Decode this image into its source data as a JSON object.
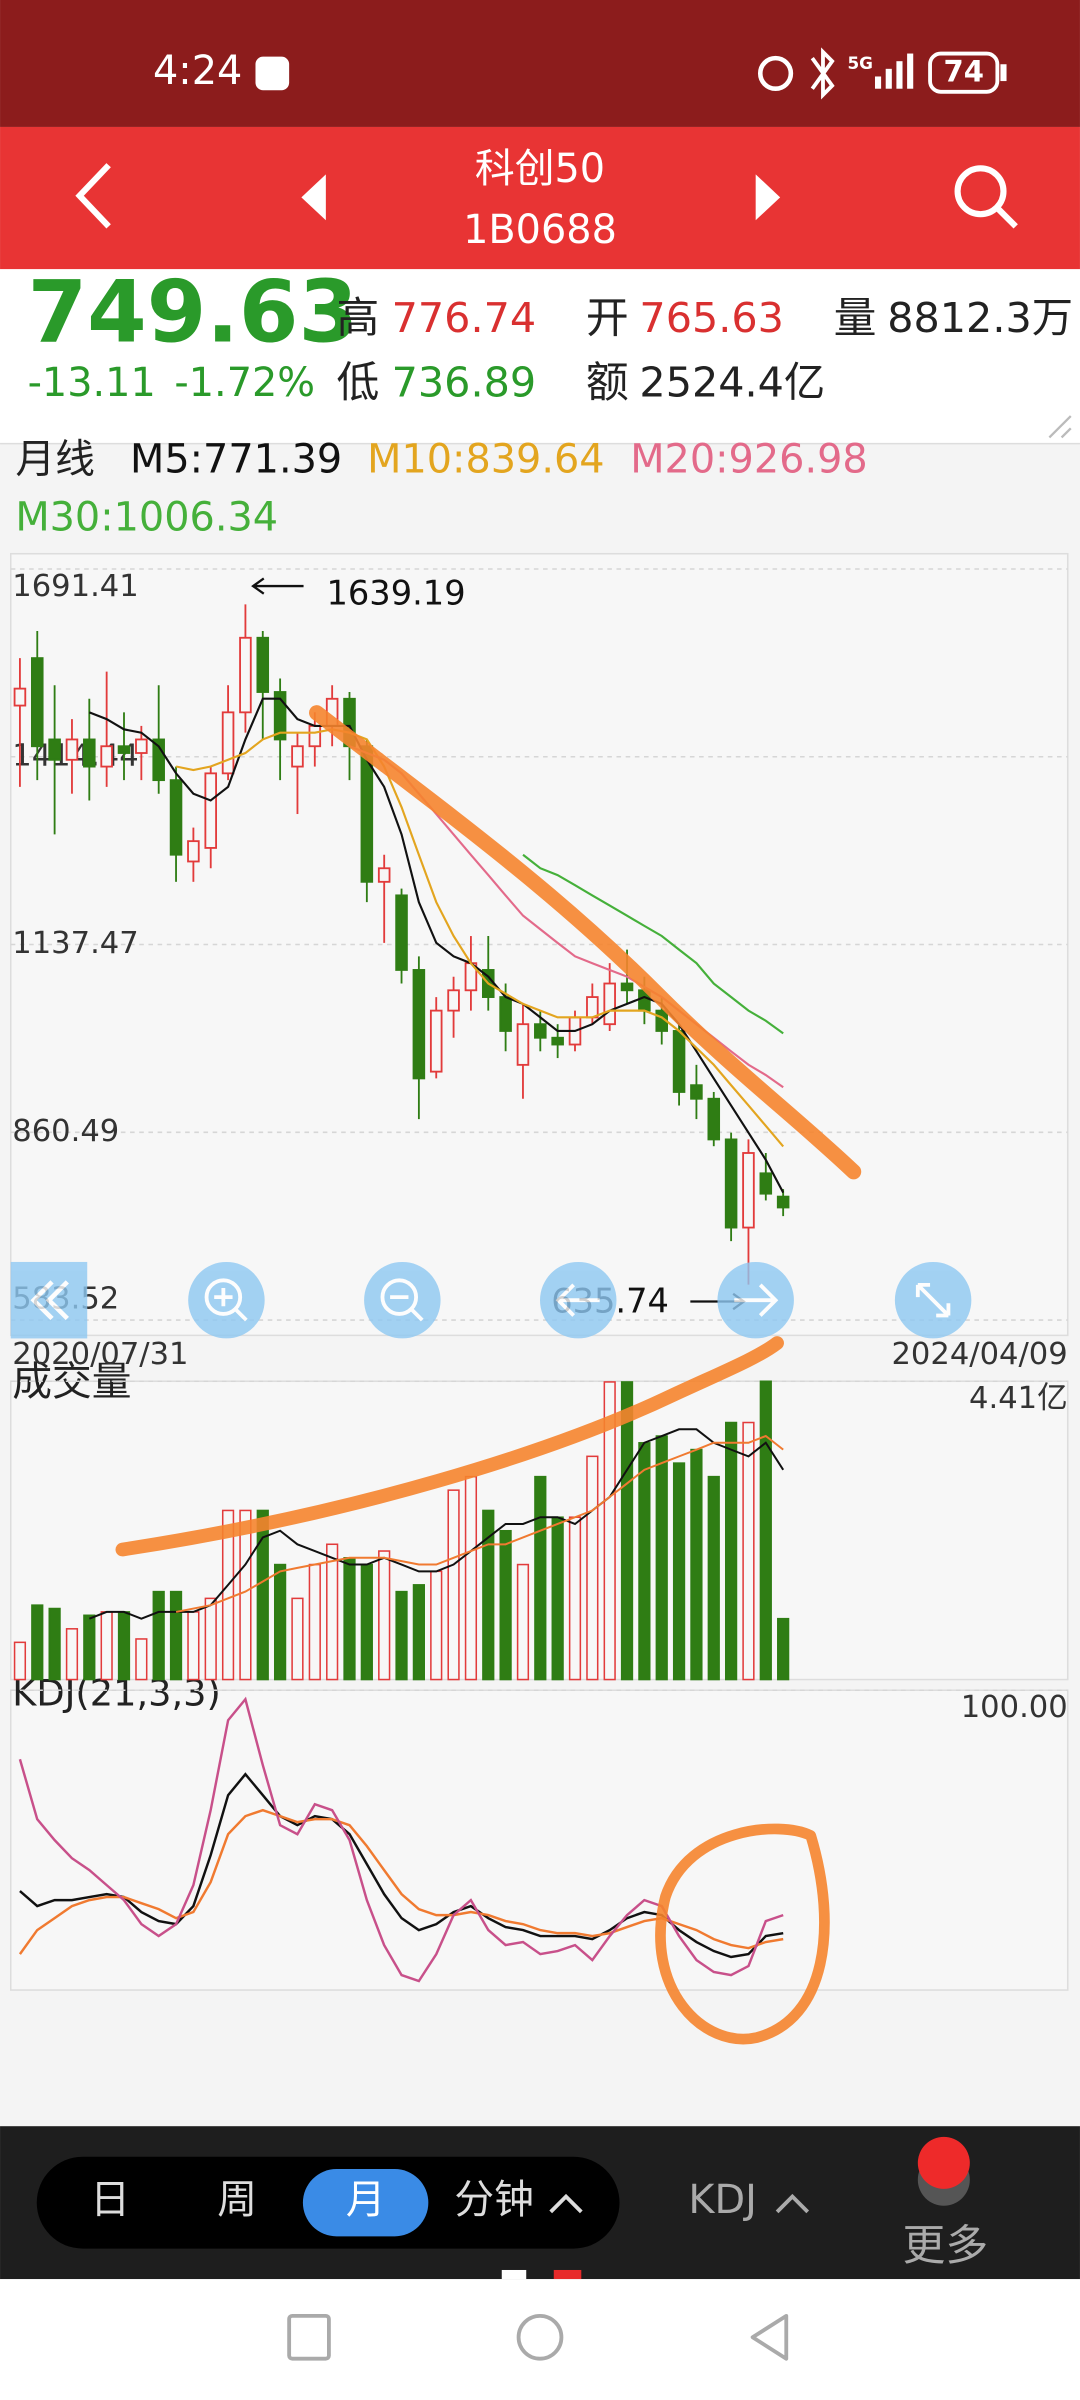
{
  "status_bar": {
    "time": "4:24",
    "network": "5G",
    "battery": "74"
  },
  "header": {
    "title": "科创50",
    "code": "1B0688"
  },
  "quote": {
    "price": "749.63",
    "change": "-13.11",
    "change_pct": "-1.72%",
    "high_label": "高",
    "high": "776.74",
    "low_label": "低",
    "low": "736.89",
    "open_label": "开",
    "open": "765.63",
    "volume_label": "量",
    "volume": "8812.3万",
    "amount_label": "额",
    "amount": "2524.4亿"
  },
  "period_label": "月线",
  "chart_data": [
    {
      "type": "candlestick",
      "open": [
        1490,
        1560,
        1440,
        1410,
        1440,
        1400,
        1430,
        1420,
        1440,
        1380,
        1260,
        1280,
        1390,
        1480,
        1590,
        1510,
        1400,
        1430,
        1460,
        1500,
        1430,
        1230,
        1210,
        1100,
        950,
        1040,
        1070,
        1100,
        1060,
        960,
        1020,
        1000,
        990,
        1030,
        1020,
        1080,
        1070,
        1040,
        1010,
        930,
        910,
        850,
        720,
        800,
        765.63
      ],
      "high": [
        1560,
        1600,
        1520,
        1470,
        1500,
        1540,
        1480,
        1460,
        1520,
        1400,
        1310,
        1400,
        1520,
        1639.19,
        1600,
        1530,
        1450,
        1480,
        1520,
        1510,
        1440,
        1270,
        1220,
        1120,
        1060,
        1090,
        1150,
        1150,
        1080,
        1050,
        1040,
        1020,
        1040,
        1080,
        1110,
        1130,
        1090,
        1060,
        1020,
        960,
        920,
        860,
        850,
        830,
        776.74
      ],
      "low": [
        1370,
        1380,
        1300,
        1360,
        1350,
        1370,
        1380,
        1380,
        1360,
        1230,
        1230,
        1250,
        1380,
        1450,
        1440,
        1380,
        1330,
        1400,
        1430,
        1380,
        1200,
        1140,
        1080,
        880,
        940,
        1000,
        1040,
        1040,
        980,
        910,
        980,
        970,
        980,
        1020,
        1010,
        1050,
        1020,
        990,
        900,
        880,
        840,
        700,
        635.74,
        760,
        736.89
      ],
      "close": [
        1515,
        1430,
        1410,
        1440,
        1400,
        1430,
        1420,
        1440,
        1380,
        1270,
        1290,
        1390,
        1480,
        1590,
        1510,
        1440,
        1430,
        1460,
        1500,
        1430,
        1230,
        1250,
        1100,
        940,
        1040,
        1070,
        1110,
        1060,
        1010,
        1020,
        1000,
        990,
        1030,
        1060,
        1080,
        1070,
        1040,
        1010,
        920,
        910,
        850,
        720,
        830,
        770,
        749.63
      ],
      "up_color": "#e23b3b",
      "down_color": "#2f7d14",
      "ylim": [
        583.52,
        1691.41
      ],
      "yticks": [
        1691.41,
        1414.44,
        1137.47,
        860.49,
        583.52
      ],
      "grid": true,
      "x_labels": [
        "2020/07/31",
        "2024/04/09"
      ],
      "max_label": "1639.19",
      "min_label": "635.74",
      "series": [
        {
          "name": "M5:771.39",
          "color": "#111111",
          "values": [
            null,
            null,
            null,
            null,
            1480,
            1470,
            1455,
            1450,
            1430,
            1390,
            1360,
            1350,
            1370,
            1440,
            1500,
            1500,
            1470,
            1460,
            1460,
            1460,
            1410,
            1370,
            1300,
            1200,
            1140,
            1120,
            1110,
            1090,
            1060,
            1050,
            1030,
            1010,
            1010,
            1020,
            1040,
            1050,
            1060,
            1050,
            1020,
            980,
            940,
            900,
            860,
            820,
            771.39
          ]
        },
        {
          "name": "M10:839.64",
          "color": "#e3a51f",
          "values": [
            null,
            null,
            null,
            null,
            null,
            null,
            null,
            null,
            null,
            1400,
            1395,
            1400,
            1410,
            1420,
            1440,
            1450,
            1450,
            1450,
            1455,
            1450,
            1440,
            1400,
            1340,
            1270,
            1200,
            1150,
            1110,
            1080,
            1065,
            1050,
            1040,
            1030,
            1030,
            1030,
            1040,
            1040,
            1040,
            1030,
            1010,
            985,
            960,
            930,
            900,
            870,
            839.64
          ]
        },
        {
          "name": "M20:926.98",
          "color": "#e36a8a",
          "values": [
            null,
            null,
            null,
            null,
            null,
            null,
            null,
            null,
            null,
            null,
            null,
            null,
            null,
            null,
            null,
            null,
            null,
            null,
            null,
            1430,
            1420,
            1410,
            1390,
            1360,
            1330,
            1300,
            1270,
            1240,
            1210,
            1180,
            1160,
            1140,
            1120,
            1110,
            1100,
            1090,
            1075,
            1060,
            1040,
            1020,
            1000,
            980,
            960,
            945,
            926.98
          ]
        },
        {
          "name": "M30:1006.34",
          "color": "#45b03a",
          "values": [
            null,
            null,
            null,
            null,
            null,
            null,
            null,
            null,
            null,
            null,
            null,
            null,
            null,
            null,
            null,
            null,
            null,
            null,
            null,
            null,
            null,
            null,
            null,
            null,
            null,
            null,
            null,
            null,
            null,
            1270,
            1250,
            1240,
            1225,
            1210,
            1195,
            1180,
            1165,
            1150,
            1130,
            1110,
            1080,
            1060,
            1040,
            1025,
            1006.34
          ]
        }
      ]
    },
    {
      "type": "bar",
      "title": "成交量",
      "values": [
        0.55,
        1.1,
        1.05,
        0.75,
        0.95,
        1.0,
        1.0,
        0.6,
        1.3,
        1.3,
        1.0,
        1.2,
        2.5,
        2.5,
        2.5,
        1.7,
        1.2,
        1.7,
        2.0,
        1.8,
        1.7,
        1.9,
        1.3,
        1.4,
        1.6,
        2.8,
        3.0,
        2.5,
        2.2,
        1.7,
        3.0,
        2.4,
        2.4,
        3.3,
        4.4,
        4.4,
        3.5,
        3.6,
        3.2,
        3.4,
        3.0,
        3.8,
        3.8,
        4.41,
        0.9
      ],
      "ylim": [
        0,
        4.41
      ],
      "yticks": [
        {
          "value": 4.41,
          "label": "4.41亿"
        }
      ],
      "series": [
        {
          "color": "#111111",
          "values": [
            null,
            null,
            null,
            null,
            0.9,
            1.0,
            1.0,
            0.9,
            1.0,
            1.0,
            1.0,
            1.1,
            1.4,
            1.7,
            2.1,
            2.2,
            2.0,
            1.9,
            1.8,
            1.7,
            1.7,
            1.8,
            1.7,
            1.6,
            1.6,
            1.7,
            1.9,
            2.1,
            2.3,
            2.3,
            2.4,
            2.4,
            2.3,
            2.5,
            2.7,
            3.1,
            3.5,
            3.6,
            3.7,
            3.7,
            3.5,
            3.4,
            3.3,
            3.5,
            3.1
          ]
        },
        {
          "color": "#f07a30",
          "values": [
            null,
            null,
            null,
            null,
            null,
            null,
            null,
            null,
            null,
            1.0,
            1.05,
            1.1,
            1.2,
            1.3,
            1.45,
            1.6,
            1.65,
            1.7,
            1.75,
            1.8,
            1.8,
            1.8,
            1.75,
            1.7,
            1.7,
            1.8,
            1.9,
            2.0,
            2.0,
            2.1,
            2.2,
            2.3,
            2.4,
            2.5,
            2.7,
            2.9,
            3.1,
            3.2,
            3.3,
            3.4,
            3.5,
            3.5,
            3.5,
            3.6,
            3.4
          ]
        }
      ]
    },
    {
      "type": "line",
      "title": "KDJ(21,3,3)",
      "ylim": [
        0,
        100
      ],
      "yticks": [
        {
          "value": 100,
          "label": "100.00"
        }
      ],
      "series": [
        {
          "color": "#111111",
          "values": [
            33,
            28,
            30,
            30,
            31,
            32,
            31,
            26,
            23,
            22,
            28,
            45,
            65,
            72,
            65,
            58,
            55,
            58,
            57,
            52,
            42,
            32,
            24,
            20,
            22,
            26,
            28,
            24,
            21,
            20,
            18,
            18,
            18,
            17,
            20,
            24,
            26,
            25,
            20,
            16,
            13,
            11,
            12,
            18,
            19
          ]
        },
        {
          "color": "#f07a30",
          "values": [
            12,
            20,
            24,
            28,
            30,
            31,
            31,
            29,
            27,
            24,
            26,
            36,
            52,
            58,
            60,
            58,
            56,
            57,
            57,
            55,
            48,
            40,
            32,
            27,
            25,
            25,
            26,
            25,
            23,
            22,
            20,
            19,
            19,
            18,
            19,
            21,
            23,
            24,
            22,
            20,
            17,
            15,
            14,
            16,
            17
          ]
        },
        {
          "color": "#c8508a",
          "values": [
            77,
            57,
            50,
            44,
            40,
            35,
            30,
            22,
            18,
            22,
            35,
            60,
            90,
            97,
            75,
            55,
            52,
            62,
            60,
            50,
            30,
            15,
            5,
            3,
            12,
            25,
            30,
            20,
            15,
            16,
            12,
            13,
            15,
            10,
            18,
            25,
            30,
            28,
            18,
            10,
            6,
            5,
            8,
            23,
            25
          ]
        }
      ]
    }
  ],
  "tabs": [
    "日",
    "周",
    "月",
    "分钟"
  ],
  "active_tab": 2,
  "indicator_button": "KDJ",
  "more_button": "更多"
}
